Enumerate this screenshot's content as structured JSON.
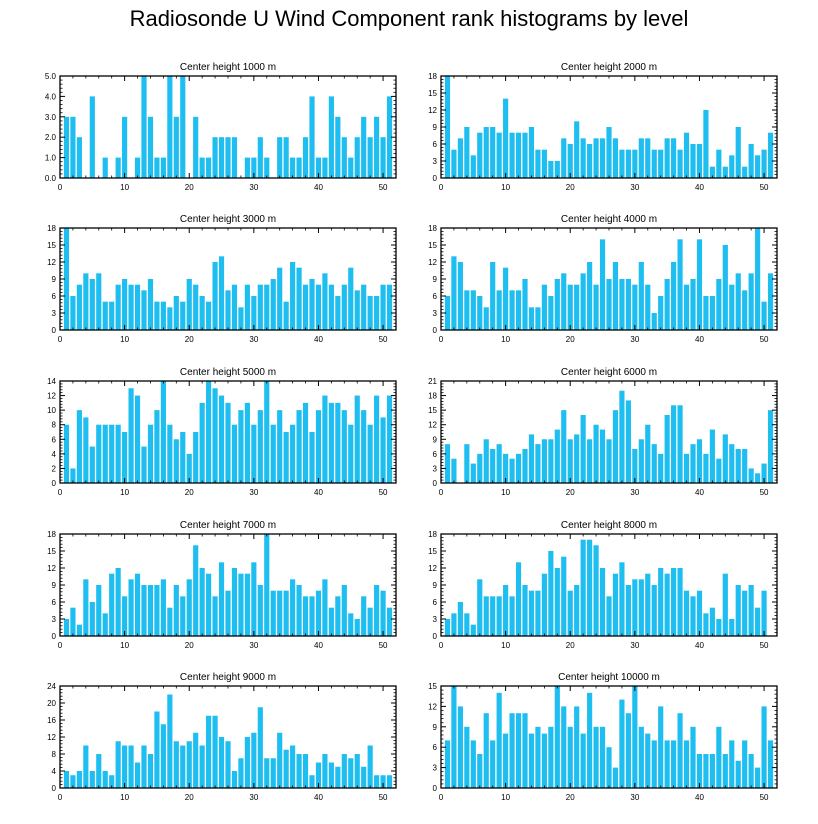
{
  "title": "Radiosonde U Wind Component rank histograms by level",
  "colors": {
    "bar": "#1EBEF0",
    "axis": "#000000",
    "background": "#FFFFFF"
  },
  "chart_data": [
    {
      "type": "bar",
      "title": "Center height 1000 m",
      "xlabel": "",
      "ylabel": "",
      "xticks": [
        0,
        10,
        20,
        30,
        40,
        50
      ],
      "yticks": [
        0,
        1,
        2,
        3,
        4,
        5
      ],
      "ytick_labels": [
        "0.0",
        "1.0",
        "2.0",
        "3.0",
        "4.0",
        "5.0"
      ],
      "ylim": [
        0,
        5
      ],
      "xlim": [
        0,
        52
      ],
      "categories": [
        1,
        2,
        3,
        4,
        5,
        6,
        7,
        8,
        9,
        10,
        11,
        12,
        13,
        14,
        15,
        16,
        17,
        18,
        19,
        20,
        21,
        22,
        23,
        24,
        25,
        26,
        27,
        28,
        29,
        30,
        31,
        32,
        33,
        34,
        35,
        36,
        37,
        38,
        39,
        40,
        41,
        42,
        43,
        44,
        45,
        46,
        47,
        48,
        49,
        50,
        51
      ],
      "values": [
        3,
        3,
        2,
        0,
        4,
        0,
        1,
        0,
        1,
        3,
        0,
        1,
        5,
        3,
        1,
        1,
        5,
        3,
        5,
        0,
        3,
        1,
        1,
        2,
        2,
        2,
        2,
        0,
        1,
        1,
        2,
        1,
        0,
        2,
        2,
        1,
        1,
        2,
        4,
        1,
        1,
        4,
        3,
        2,
        1,
        2,
        3,
        2,
        3,
        2,
        4
      ]
    },
    {
      "type": "bar",
      "title": "Center height 2000 m",
      "xlabel": "",
      "ylabel": "",
      "xticks": [
        0,
        10,
        20,
        30,
        40,
        50
      ],
      "yticks": [
        0,
        3,
        6,
        9,
        12,
        15,
        18
      ],
      "ytick_labels": [
        "0",
        "3",
        "6",
        "9",
        "12",
        "15",
        "18"
      ],
      "ylim": [
        0,
        18
      ],
      "xlim": [
        0,
        52
      ],
      "categories": [
        1,
        2,
        3,
        4,
        5,
        6,
        7,
        8,
        9,
        10,
        11,
        12,
        13,
        14,
        15,
        16,
        17,
        18,
        19,
        20,
        21,
        22,
        23,
        24,
        25,
        26,
        27,
        28,
        29,
        30,
        31,
        32,
        33,
        34,
        35,
        36,
        37,
        38,
        39,
        40,
        41,
        42,
        43,
        44,
        45,
        46,
        47,
        48,
        49,
        50,
        51
      ],
      "values": [
        18,
        5,
        7,
        9,
        4,
        8,
        9,
        9,
        8,
        14,
        8,
        8,
        8,
        9,
        5,
        5,
        3,
        3,
        7,
        6,
        10,
        7,
        6,
        7,
        7,
        9,
        7,
        5,
        5,
        5,
        7,
        7,
        5,
        5,
        7,
        7,
        5,
        8,
        6,
        6,
        12,
        2,
        5,
        2,
        4,
        9,
        2,
        6,
        4,
        5,
        8
      ]
    },
    {
      "type": "bar",
      "title": "Center height 3000 m",
      "xlabel": "",
      "ylabel": "",
      "xticks": [
        0,
        10,
        20,
        30,
        40,
        50
      ],
      "yticks": [
        0,
        3,
        6,
        9,
        12,
        15,
        18
      ],
      "ytick_labels": [
        "0",
        "3",
        "6",
        "9",
        "12",
        "15",
        "18"
      ],
      "ylim": [
        0,
        18
      ],
      "xlim": [
        0,
        52
      ],
      "categories": [
        1,
        2,
        3,
        4,
        5,
        6,
        7,
        8,
        9,
        10,
        11,
        12,
        13,
        14,
        15,
        16,
        17,
        18,
        19,
        20,
        21,
        22,
        23,
        24,
        25,
        26,
        27,
        28,
        29,
        30,
        31,
        32,
        33,
        34,
        35,
        36,
        37,
        38,
        39,
        40,
        41,
        42,
        43,
        44,
        45,
        46,
        47,
        48,
        49,
        50,
        51
      ],
      "values": [
        18,
        6,
        8,
        10,
        9,
        10,
        5,
        5,
        8,
        9,
        8,
        8,
        7,
        9,
        5,
        5,
        4,
        6,
        5,
        9,
        8,
        6,
        5,
        12,
        13,
        7,
        8,
        4,
        8,
        6,
        8,
        8,
        9,
        11,
        5,
        12,
        11,
        8,
        9,
        8,
        10,
        8,
        6,
        8,
        11,
        7,
        8,
        6,
        6,
        8,
        8
      ]
    },
    {
      "type": "bar",
      "title": "Center height 4000 m",
      "xlabel": "",
      "ylabel": "",
      "xticks": [
        0,
        10,
        20,
        30,
        40,
        50
      ],
      "yticks": [
        0,
        3,
        6,
        9,
        12,
        15,
        18
      ],
      "ytick_labels": [
        "0",
        "3",
        "6",
        "9",
        "12",
        "15",
        "18"
      ],
      "ylim": [
        0,
        18
      ],
      "xlim": [
        0,
        52
      ],
      "categories": [
        1,
        2,
        3,
        4,
        5,
        6,
        7,
        8,
        9,
        10,
        11,
        12,
        13,
        14,
        15,
        16,
        17,
        18,
        19,
        20,
        21,
        22,
        23,
        24,
        25,
        26,
        27,
        28,
        29,
        30,
        31,
        32,
        33,
        34,
        35,
        36,
        37,
        38,
        39,
        40,
        41,
        42,
        43,
        44,
        45,
        46,
        47,
        48,
        49,
        50,
        51
      ],
      "values": [
        6,
        13,
        12,
        7,
        7,
        6,
        4,
        12,
        7,
        11,
        7,
        7,
        9,
        4,
        4,
        8,
        6,
        9,
        10,
        8,
        8,
        10,
        12,
        8,
        16,
        9,
        12,
        9,
        9,
        8,
        12,
        8,
        3,
        6,
        9,
        12,
        16,
        8,
        9,
        16,
        6,
        6,
        9,
        15,
        8,
        10,
        7,
        10,
        18,
        5,
        10
      ]
    },
    {
      "type": "bar",
      "title": "Center height 5000 m",
      "xlabel": "",
      "ylabel": "",
      "xticks": [
        0,
        10,
        20,
        30,
        40,
        50
      ],
      "yticks": [
        0,
        2,
        4,
        6,
        8,
        10,
        12,
        14
      ],
      "ytick_labels": [
        "0",
        "2",
        "4",
        "6",
        "8",
        "10",
        "12",
        "14"
      ],
      "ylim": [
        0,
        14
      ],
      "xlim": [
        0,
        52
      ],
      "categories": [
        1,
        2,
        3,
        4,
        5,
        6,
        7,
        8,
        9,
        10,
        11,
        12,
        13,
        14,
        15,
        16,
        17,
        18,
        19,
        20,
        21,
        22,
        23,
        24,
        25,
        26,
        27,
        28,
        29,
        30,
        31,
        32,
        33,
        34,
        35,
        36,
        37,
        38,
        39,
        40,
        41,
        42,
        43,
        44,
        45,
        46,
        47,
        48,
        49,
        50,
        51
      ],
      "values": [
        8,
        2,
        10,
        9,
        5,
        8,
        8,
        8,
        8,
        7,
        13,
        12,
        5,
        8,
        10,
        14,
        8,
        6,
        7,
        4,
        7,
        11,
        14,
        13,
        12,
        11,
        8,
        10,
        11,
        8,
        10,
        14,
        8,
        10,
        7,
        8,
        10,
        11,
        7,
        10,
        12,
        11,
        11,
        10,
        8,
        12,
        10,
        8,
        12,
        9,
        12
      ]
    },
    {
      "type": "bar",
      "title": "Center height 6000 m",
      "xlabel": "",
      "ylabel": "",
      "xticks": [
        0,
        10,
        20,
        30,
        40,
        50
      ],
      "yticks": [
        0,
        3,
        6,
        9,
        12,
        15,
        18,
        21
      ],
      "ytick_labels": [
        "0",
        "3",
        "6",
        "9",
        "12",
        "15",
        "18",
        "21"
      ],
      "ylim": [
        0,
        21
      ],
      "xlim": [
        0,
        52
      ],
      "categories": [
        1,
        2,
        3,
        4,
        5,
        6,
        7,
        8,
        9,
        10,
        11,
        12,
        13,
        14,
        15,
        16,
        17,
        18,
        19,
        20,
        21,
        22,
        23,
        24,
        25,
        26,
        27,
        28,
        29,
        30,
        31,
        32,
        33,
        34,
        35,
        36,
        37,
        38,
        39,
        40,
        41,
        42,
        43,
        44,
        45,
        46,
        47,
        48,
        49,
        50,
        51
      ],
      "values": [
        8,
        5,
        0,
        8,
        4,
        6,
        9,
        7,
        8,
        6,
        5,
        6,
        7,
        10,
        8,
        9,
        9,
        11,
        15,
        9,
        10,
        14,
        9,
        12,
        11,
        9,
        15,
        19,
        17,
        7,
        9,
        12,
        8,
        6,
        14,
        16,
        16,
        6,
        8,
        9,
        6,
        11,
        5,
        10,
        8,
        7,
        7,
        3,
        2,
        4,
        15
      ]
    },
    {
      "type": "bar",
      "title": "Center height 7000 m",
      "xlabel": "",
      "ylabel": "",
      "xticks": [
        0,
        10,
        20,
        30,
        40,
        50
      ],
      "yticks": [
        0,
        3,
        6,
        9,
        12,
        15,
        18
      ],
      "ytick_labels": [
        "0",
        "3",
        "6",
        "9",
        "12",
        "15",
        "18"
      ],
      "ylim": [
        0,
        18
      ],
      "xlim": [
        0,
        52
      ],
      "categories": [
        1,
        2,
        3,
        4,
        5,
        6,
        7,
        8,
        9,
        10,
        11,
        12,
        13,
        14,
        15,
        16,
        17,
        18,
        19,
        20,
        21,
        22,
        23,
        24,
        25,
        26,
        27,
        28,
        29,
        30,
        31,
        32,
        33,
        34,
        35,
        36,
        37,
        38,
        39,
        40,
        41,
        42,
        43,
        44,
        45,
        46,
        47,
        48,
        49,
        50,
        51
      ],
      "values": [
        3,
        5,
        2,
        10,
        6,
        9,
        4,
        11,
        12,
        7,
        10,
        11,
        9,
        9,
        9,
        10,
        5,
        9,
        7,
        10,
        16,
        12,
        11,
        7,
        13,
        8,
        12,
        11,
        11,
        13,
        9,
        18,
        8,
        8,
        8,
        10,
        9,
        7,
        7,
        8,
        10,
        5,
        7,
        9,
        4,
        3,
        7,
        5,
        9,
        8,
        5
      ]
    },
    {
      "type": "bar",
      "title": "Center height 8000 m",
      "xlabel": "",
      "ylabel": "",
      "xticks": [
        0,
        10,
        20,
        30,
        40,
        50
      ],
      "yticks": [
        0,
        3,
        6,
        9,
        12,
        15,
        18
      ],
      "ytick_labels": [
        "0",
        "3",
        "6",
        "9",
        "12",
        "15",
        "18"
      ],
      "ylim": [
        0,
        18
      ],
      "xlim": [
        0,
        52
      ],
      "categories": [
        1,
        2,
        3,
        4,
        5,
        6,
        7,
        8,
        9,
        10,
        11,
        12,
        13,
        14,
        15,
        16,
        17,
        18,
        19,
        20,
        21,
        22,
        23,
        24,
        25,
        26,
        27,
        28,
        29,
        30,
        31,
        32,
        33,
        34,
        35,
        36,
        37,
        38,
        39,
        40,
        41,
        42,
        43,
        44,
        45,
        46,
        47,
        48,
        49,
        50,
        51
      ],
      "values": [
        3,
        4,
        6,
        4,
        2,
        10,
        7,
        7,
        7,
        9,
        7,
        13,
        9,
        8,
        8,
        11,
        15,
        12,
        14,
        8,
        9,
        17,
        17,
        16,
        12,
        7,
        11,
        13,
        9,
        10,
        10,
        11,
        9,
        12,
        11,
        12,
        12,
        8,
        7,
        8,
        4,
        5,
        3,
        11,
        3,
        9,
        8,
        9,
        5,
        8,
        0
      ]
    },
    {
      "type": "bar",
      "title": "Center height 9000 m",
      "xlabel": "",
      "ylabel": "",
      "xticks": [
        0,
        10,
        20,
        30,
        40,
        50
      ],
      "yticks": [
        0,
        4,
        8,
        12,
        16,
        20,
        24
      ],
      "ytick_labels": [
        "0",
        "4",
        "8",
        "12",
        "16",
        "20",
        "24"
      ],
      "ylim": [
        0,
        24
      ],
      "xlim": [
        0,
        52
      ],
      "categories": [
        1,
        2,
        3,
        4,
        5,
        6,
        7,
        8,
        9,
        10,
        11,
        12,
        13,
        14,
        15,
        16,
        17,
        18,
        19,
        20,
        21,
        22,
        23,
        24,
        25,
        26,
        27,
        28,
        29,
        30,
        31,
        32,
        33,
        34,
        35,
        36,
        37,
        38,
        39,
        40,
        41,
        42,
        43,
        44,
        45,
        46,
        47,
        48,
        49,
        50,
        51
      ],
      "values": [
        4,
        3,
        4,
        10,
        4,
        8,
        4,
        3,
        11,
        10,
        10,
        6,
        10,
        8,
        18,
        15,
        22,
        11,
        10,
        11,
        13,
        10,
        17,
        17,
        12,
        11,
        4,
        7,
        12,
        13,
        19,
        7,
        7,
        13,
        9,
        10,
        8,
        8,
        3,
        6,
        8,
        6,
        5,
        8,
        7,
        8,
        5,
        10,
        3,
        3,
        3
      ]
    },
    {
      "type": "bar",
      "title": "Center height 10000 m",
      "xlabel": "",
      "ylabel": "",
      "xticks": [
        0,
        10,
        20,
        30,
        40,
        50
      ],
      "yticks": [
        0,
        3,
        6,
        9,
        12,
        15
      ],
      "ytick_labels": [
        "0",
        "3",
        "6",
        "9",
        "12",
        "15"
      ],
      "ylim": [
        0,
        15
      ],
      "xlim": [
        0,
        52
      ],
      "categories": [
        1,
        2,
        3,
        4,
        5,
        6,
        7,
        8,
        9,
        10,
        11,
        12,
        13,
        14,
        15,
        16,
        17,
        18,
        19,
        20,
        21,
        22,
        23,
        24,
        25,
        26,
        27,
        28,
        29,
        30,
        31,
        32,
        33,
        34,
        35,
        36,
        37,
        38,
        39,
        40,
        41,
        42,
        43,
        44,
        45,
        46,
        47,
        48,
        49,
        50,
        51
      ],
      "values": [
        7,
        15,
        12,
        9,
        7,
        5,
        11,
        7,
        14,
        8,
        11,
        11,
        11,
        8,
        9,
        8,
        9,
        15,
        12,
        9,
        12,
        8,
        14,
        9,
        9,
        6,
        3,
        13,
        11,
        15,
        9,
        8,
        7,
        12,
        7,
        7,
        11,
        7,
        9,
        5,
        5,
        5,
        9,
        5,
        7,
        4,
        7,
        5,
        3,
        12,
        7
      ]
    }
  ]
}
